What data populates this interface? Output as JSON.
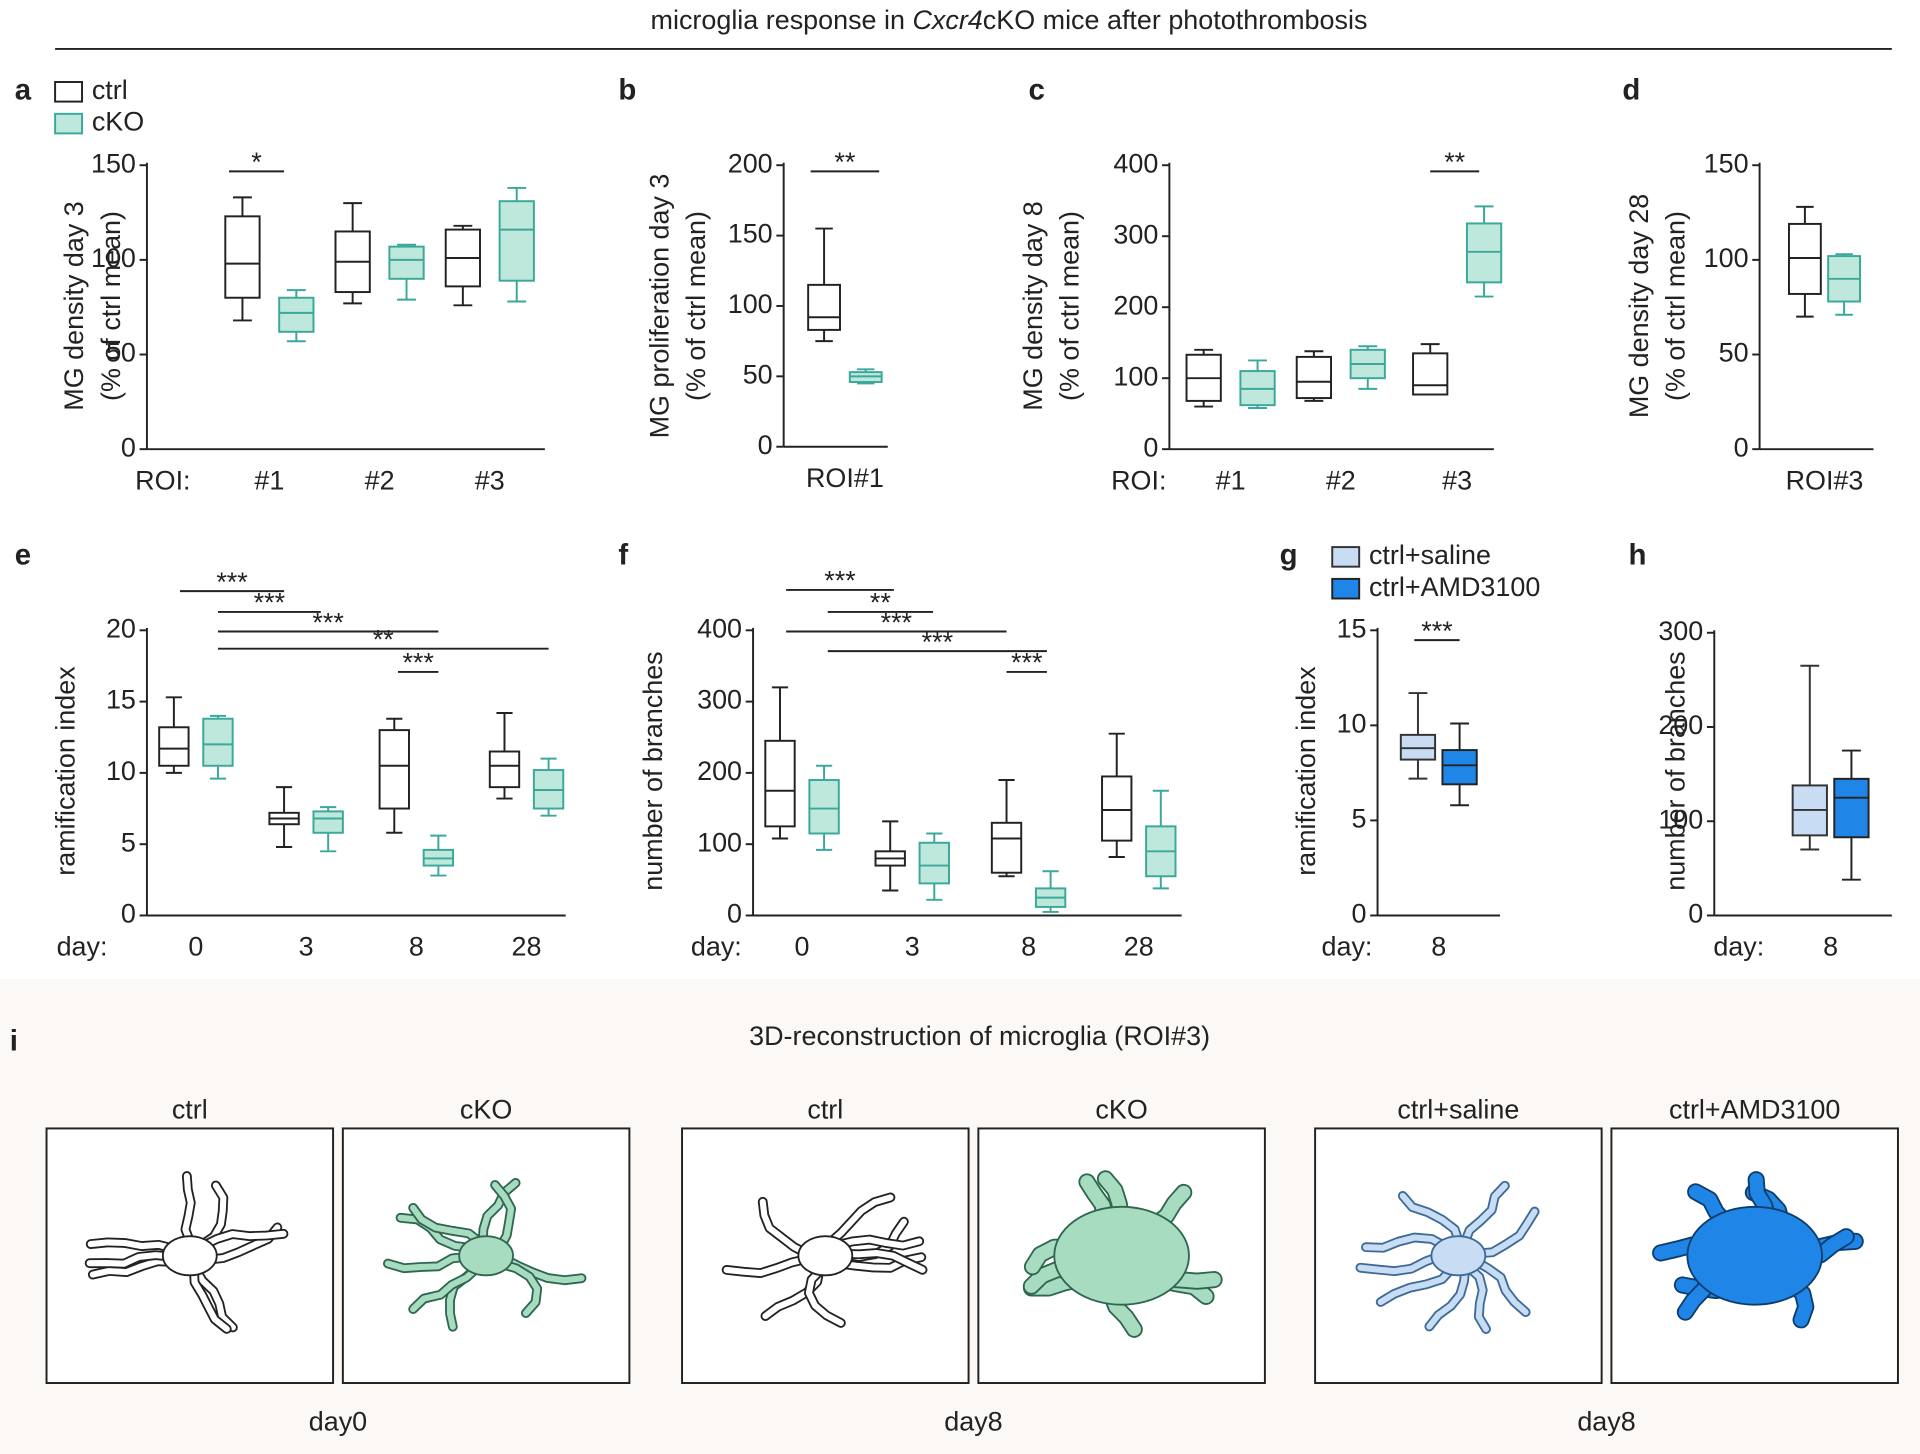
{
  "header": {
    "title_pre": "microglia response in ",
    "title_italic": "Cxcr4",
    "title_post": "cKO mice after photothrombosis"
  },
  "chart_data": [
    {
      "type": "box",
      "letter": "a",
      "ylabel": [
        "MG density day 3",
        "(% of ctrl mean)"
      ],
      "ylim": [
        0,
        150
      ],
      "yticks": [
        0,
        50,
        100,
        150
      ],
      "x_label": "ROI:",
      "categories": [
        "#1",
        "#2",
        "#3"
      ],
      "legend": true,
      "series": [
        {
          "name": "ctrl",
          "color": "#222222",
          "fill": "#ffffff",
          "boxes": [
            {
              "min": 68,
              "q1": 80,
              "median": 98,
              "q3": 123,
              "max": 133
            },
            {
              "min": 77,
              "q1": 83,
              "median": 99,
              "q3": 115,
              "max": 130
            },
            {
              "min": 76,
              "q1": 86,
              "median": 101,
              "q3": 116,
              "max": 118
            }
          ]
        },
        {
          "name": "cKO",
          "color": "#3aa89a",
          "fill": "#bfe8dc",
          "boxes": [
            {
              "min": 57,
              "q1": 62,
              "median": 72,
              "q3": 80,
              "max": 84
            },
            {
              "min": 79,
              "q1": 90,
              "median": 100,
              "q3": 107,
              "max": 108
            },
            {
              "min": 78,
              "q1": 89,
              "median": 116,
              "q3": 131,
              "max": 138
            }
          ]
        }
      ],
      "annotations": [
        "*"
      ]
    },
    {
      "type": "box",
      "letter": "b",
      "ylabel": [
        "MG proliferation day 3",
        "(% of ctrl mean)"
      ],
      "ylim": [
        0,
        200
      ],
      "yticks": [
        0,
        50,
        100,
        150,
        200
      ],
      "categories": [
        "ROI#1"
      ],
      "series": [
        {
          "color": "#222222",
          "fill": "#ffffff",
          "boxes": [
            {
              "min": 75,
              "q1": 83,
              "median": 92,
              "q3": 115,
              "max": 155
            }
          ]
        },
        {
          "color": "#3aa89a",
          "fill": "#bfe8dc",
          "boxes": [
            {
              "min": 45,
              "q1": 46,
              "median": 50,
              "q3": 53,
              "max": 55
            }
          ]
        }
      ],
      "annotations": [
        "**"
      ]
    },
    {
      "type": "box",
      "letter": "c",
      "ylabel": [
        "MG density day 8",
        "(% of ctrl mean)"
      ],
      "ylim": [
        0,
        400
      ],
      "yticks": [
        0,
        100,
        200,
        300,
        400
      ],
      "x_label": "ROI:",
      "categories": [
        "#1",
        "#2",
        "#3"
      ],
      "series": [
        {
          "color": "#222222",
          "fill": "#ffffff",
          "boxes": [
            {
              "min": 60,
              "q1": 68,
              "median": 100,
              "q3": 133,
              "max": 140
            },
            {
              "min": 68,
              "q1": 72,
              "median": 95,
              "q3": 130,
              "max": 138
            },
            {
              "min": 77,
              "q1": 77,
              "median": 90,
              "q3": 135,
              "max": 148
            }
          ]
        },
        {
          "color": "#3aa89a",
          "fill": "#bfe8dc",
          "boxes": [
            {
              "min": 58,
              "q1": 62,
              "median": 85,
              "q3": 110,
              "max": 125
            },
            {
              "min": 85,
              "q1": 100,
              "median": 120,
              "q3": 140,
              "max": 145
            },
            {
              "min": 215,
              "q1": 235,
              "median": 278,
              "q3": 318,
              "max": 342
            }
          ]
        }
      ],
      "annotations": [
        "**"
      ]
    },
    {
      "type": "box",
      "letter": "d",
      "ylabel": [
        "MG density day 28",
        "(% of ctrl mean)"
      ],
      "ylim": [
        0,
        150
      ],
      "yticks": [
        0,
        50,
        100,
        150
      ],
      "categories": [
        "ROI#3"
      ],
      "series": [
        {
          "color": "#222222",
          "fill": "#ffffff",
          "boxes": [
            {
              "min": 70,
              "q1": 82,
              "median": 101,
              "q3": 119,
              "max": 128
            }
          ]
        },
        {
          "color": "#3aa89a",
          "fill": "#bfe8dc",
          "boxes": [
            {
              "min": 71,
              "q1": 78,
              "median": 90,
              "q3": 102,
              "max": 103
            }
          ]
        }
      ],
      "annotations": []
    },
    {
      "type": "box",
      "letter": "e",
      "ylabel": [
        "ramification index"
      ],
      "ylim": [
        0,
        20
      ],
      "yticks": [
        0,
        5,
        10,
        15,
        20
      ],
      "x_label": "day:",
      "categories": [
        "0",
        "3",
        "8",
        "28"
      ],
      "series": [
        {
          "color": "#222222",
          "fill": "#ffffff",
          "boxes": [
            {
              "min": 10,
              "q1": 10.5,
              "median": 11.7,
              "q3": 13.2,
              "max": 15.3
            },
            {
              "min": 4.8,
              "q1": 6.4,
              "median": 6.8,
              "q3": 7.2,
              "max": 9
            },
            {
              "min": 5.8,
              "q1": 7.5,
              "median": 10.5,
              "q3": 13,
              "max": 13.8
            },
            {
              "min": 8.2,
              "q1": 9,
              "median": 10.5,
              "q3": 11.5,
              "max": 14.2
            }
          ]
        },
        {
          "color": "#3aa89a",
          "fill": "#bfe8dc",
          "boxes": [
            {
              "min": 9.6,
              "q1": 10.5,
              "median": 12,
              "q3": 13.8,
              "max": 14
            },
            {
              "min": 4.5,
              "q1": 5.8,
              "median": 6.8,
              "q3": 7.3,
              "max": 7.6
            },
            {
              "min": 2.8,
              "q1": 3.5,
              "median": 4,
              "q3": 4.6,
              "max": 5.6
            },
            {
              "min": 7,
              "q1": 7.5,
              "median": 8.8,
              "q3": 10.2,
              "max": 11
            }
          ]
        }
      ],
      "annotations": [
        "***",
        "***",
        "***",
        "**",
        "***"
      ]
    },
    {
      "type": "box",
      "letter": "f",
      "ylabel": [
        "number of  branches"
      ],
      "ylim": [
        0,
        400
      ],
      "yticks": [
        0,
        100,
        200,
        300,
        400
      ],
      "x_label": "day:",
      "categories": [
        "0",
        "3",
        "8",
        "28"
      ],
      "series": [
        {
          "color": "#222222",
          "fill": "#ffffff",
          "boxes": [
            {
              "min": 108,
              "q1": 125,
              "median": 175,
              "q3": 245,
              "max": 320
            },
            {
              "min": 35,
              "q1": 70,
              "median": 80,
              "q3": 90,
              "max": 132
            },
            {
              "min": 55,
              "q1": 60,
              "median": 108,
              "q3": 130,
              "max": 190
            },
            {
              "min": 82,
              "q1": 105,
              "median": 148,
              "q3": 195,
              "max": 255
            }
          ]
        },
        {
          "color": "#3aa89a",
          "fill": "#bfe8dc",
          "boxes": [
            {
              "min": 92,
              "q1": 115,
              "median": 150,
              "q3": 190,
              "max": 210
            },
            {
              "min": 22,
              "q1": 45,
              "median": 70,
              "q3": 102,
              "max": 115
            },
            {
              "min": 5,
              "q1": 12,
              "median": 25,
              "q3": 38,
              "max": 62
            },
            {
              "min": 38,
              "q1": 55,
              "median": 90,
              "q3": 125,
              "max": 175
            }
          ]
        }
      ],
      "annotations": [
        "***",
        "**",
        "***",
        "***",
        "***"
      ]
    },
    {
      "type": "box",
      "letter": "g",
      "ylabel": [
        "ramification index"
      ],
      "ylim": [
        0,
        15
      ],
      "yticks": [
        0,
        5,
        10,
        15
      ],
      "x_label": "day:",
      "categories": [
        "8"
      ],
      "legend": true,
      "series": [
        {
          "name": "ctrl+saline",
          "color": "#333333",
          "fill": "#c8dcf4",
          "boxes": [
            {
              "min": 7.2,
              "q1": 8.2,
              "median": 8.8,
              "q3": 9.5,
              "max": 11.7
            }
          ]
        },
        {
          "name": "ctrl+AMD3100",
          "color": "#222222",
          "fill": "#1f86e8",
          "boxes": [
            {
              "min": 5.8,
              "q1": 6.9,
              "median": 7.9,
              "q3": 8.7,
              "max": 10.1
            }
          ]
        }
      ],
      "annotations": [
        "***"
      ]
    },
    {
      "type": "box",
      "letter": "h",
      "ylabel": [
        "number of  branches"
      ],
      "ylim": [
        0,
        300
      ],
      "yticks": [
        0,
        100,
        200,
        300
      ],
      "x_label": "day:",
      "categories": [
        "8"
      ],
      "series": [
        {
          "color": "#333333",
          "fill": "#c8dcf4",
          "boxes": [
            {
              "min": 70,
              "q1": 85,
              "median": 112,
              "q3": 138,
              "max": 265
            }
          ]
        },
        {
          "color": "#222222",
          "fill": "#1f86e8",
          "boxes": [
            {
              "min": 38,
              "q1": 83,
              "median": 125,
              "q3": 145,
              "max": 175
            }
          ]
        }
      ],
      "annotations": []
    }
  ],
  "reconstruction": {
    "letter": "i",
    "title": "3D-reconstruction of microglia (ROI#3)",
    "groups": [
      {
        "labels": [
          "ctrl",
          "cKO"
        ],
        "day": "day0"
      },
      {
        "labels": [
          "ctrl",
          "cKO"
        ],
        "day": "day8"
      },
      {
        "labels": [
          "ctrl+saline",
          "ctrl+AMD3100"
        ],
        "day": "day8"
      }
    ]
  }
}
